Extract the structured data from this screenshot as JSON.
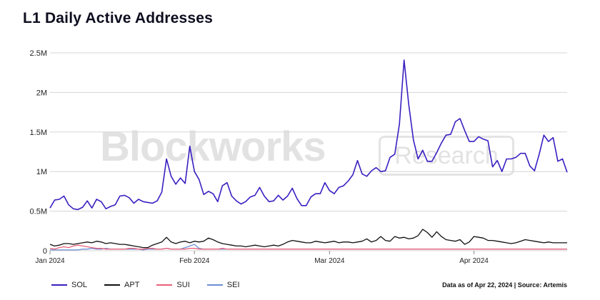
{
  "title": "L1 Daily Active Addresses",
  "watermark": {
    "brand": "Blockworks",
    "badge": "Research"
  },
  "source_note": "Data as of Apr 22, 2024 | Source: Artemis",
  "colors": {
    "SOL": "#3a1fc2",
    "APT": "#111111",
    "SUI": "#e8617a",
    "SEI": "#6a8fd6",
    "grid": "#d6d6d6"
  },
  "chart_data": {
    "type": "line",
    "title": "L1 Daily Active Addresses",
    "xlabel": "",
    "ylabel": "",
    "ylim": [
      0,
      2500000
    ],
    "yticks": [
      {
        "value": 0,
        "label": "0"
      },
      {
        "value": 500000,
        "label": "0.5M"
      },
      {
        "value": 1000000,
        "label": "1M"
      },
      {
        "value": 1500000,
        "label": "1.5M"
      },
      {
        "value": 2000000,
        "label": "2M"
      },
      {
        "value": 2500000,
        "label": "2.5M"
      }
    ],
    "xticks": [
      {
        "day": 0,
        "label": "Jan 2024"
      },
      {
        "day": 31,
        "label": "Feb 2024"
      },
      {
        "day": 60,
        "label": "Mar 2024"
      },
      {
        "day": 91,
        "label": "Apr 2024"
      }
    ],
    "x_start": "2024-01-01",
    "x_end": "2024-04-22",
    "grid": true,
    "legend": "bottom-left",
    "series": [
      {
        "name": "SOL",
        "values": [
          540000,
          640000,
          650000,
          690000,
          580000,
          530000,
          520000,
          550000,
          630000,
          540000,
          650000,
          620000,
          530000,
          560000,
          580000,
          690000,
          700000,
          670000,
          600000,
          650000,
          620000,
          610000,
          600000,
          630000,
          740000,
          1160000,
          940000,
          840000,
          920000,
          850000,
          1320000,
          1000000,
          900000,
          710000,
          750000,
          720000,
          620000,
          820000,
          860000,
          690000,
          630000,
          590000,
          620000,
          680000,
          700000,
          800000,
          690000,
          620000,
          630000,
          700000,
          640000,
          690000,
          790000,
          660000,
          570000,
          570000,
          680000,
          720000,
          720000,
          860000,
          760000,
          720000,
          800000,
          820000,
          880000,
          960000,
          1140000,
          970000,
          940000,
          1010000,
          1050000,
          1000000,
          1010000,
          1180000,
          1220000,
          1600000,
          2410000,
          1850000,
          1400000,
          1160000,
          1270000,
          1130000,
          1130000,
          1240000,
          1360000,
          1460000,
          1470000,
          1630000,
          1670000,
          1520000,
          1380000,
          1380000,
          1440000,
          1410000,
          1390000,
          1060000,
          1140000,
          1000000,
          1160000,
          1160000,
          1180000,
          1230000,
          1230000,
          1070000,
          1010000,
          1220000,
          1460000,
          1380000,
          1430000,
          1130000,
          1160000,
          990000
        ]
      },
      {
        "name": "APT",
        "values": [
          80000,
          60000,
          70000,
          90000,
          90000,
          80000,
          90000,
          100000,
          110000,
          100000,
          120000,
          110000,
          90000,
          100000,
          90000,
          80000,
          80000,
          70000,
          60000,
          50000,
          40000,
          40000,
          70000,
          90000,
          110000,
          170000,
          110000,
          90000,
          110000,
          120000,
          100000,
          120000,
          110000,
          120000,
          160000,
          140000,
          110000,
          90000,
          80000,
          70000,
          60000,
          60000,
          50000,
          60000,
          70000,
          60000,
          50000,
          60000,
          70000,
          60000,
          80000,
          110000,
          130000,
          120000,
          110000,
          100000,
          100000,
          120000,
          110000,
          100000,
          110000,
          120000,
          100000,
          110000,
          110000,
          100000,
          110000,
          120000,
          150000,
          110000,
          130000,
          180000,
          130000,
          120000,
          180000,
          160000,
          170000,
          150000,
          160000,
          190000,
          270000,
          230000,
          170000,
          240000,
          180000,
          140000,
          130000,
          120000,
          140000,
          80000,
          110000,
          180000,
          170000,
          160000,
          130000,
          130000,
          120000,
          110000,
          100000,
          90000,
          100000,
          120000,
          140000,
          130000,
          120000,
          110000,
          100000,
          110000,
          100000,
          100000,
          100000,
          100000
        ]
      },
      {
        "name": "SUI",
        "values": [
          30000,
          20000,
          40000,
          50000,
          40000,
          60000,
          70000,
          60000,
          50000,
          40000,
          30000,
          30000,
          20000,
          20000,
          20000,
          20000,
          20000,
          30000,
          30000,
          20000,
          20000,
          30000,
          30000,
          20000,
          20000,
          30000,
          20000,
          20000,
          20000,
          20000,
          30000,
          30000,
          20000,
          20000,
          20000,
          20000,
          20000,
          30000,
          20000,
          20000,
          20000,
          20000,
          20000,
          20000,
          20000,
          20000,
          20000,
          20000,
          20000,
          20000,
          20000,
          20000,
          20000,
          20000,
          20000,
          20000,
          20000,
          20000,
          20000,
          20000,
          20000,
          20000,
          20000,
          20000,
          20000,
          20000,
          20000,
          20000,
          20000,
          20000,
          20000,
          20000,
          20000,
          20000,
          20000,
          20000,
          20000,
          20000,
          20000,
          20000,
          20000,
          20000,
          20000,
          20000,
          20000,
          20000,
          20000,
          20000,
          20000,
          20000,
          20000,
          20000,
          20000,
          20000,
          20000,
          20000,
          20000,
          20000,
          20000,
          20000,
          20000,
          20000,
          20000,
          20000,
          20000,
          20000,
          20000,
          20000,
          20000,
          20000,
          20000,
          20000
        ]
      },
      {
        "name": "SEI",
        "values": [
          10000,
          10000,
          10000,
          10000,
          10000,
          10000,
          10000,
          20000,
          20000,
          30000,
          20000,
          20000,
          30000,
          20000,
          20000,
          20000,
          20000,
          20000,
          20000,
          20000,
          10000,
          20000,
          20000,
          20000,
          20000,
          30000,
          20000,
          20000,
          20000,
          40000,
          60000,
          80000,
          30000,
          20000,
          20000,
          20000,
          20000,
          20000,
          20000,
          20000,
          20000,
          20000,
          20000,
          20000,
          20000,
          20000,
          20000,
          20000,
          20000,
          20000,
          20000,
          20000,
          20000,
          20000,
          20000,
          20000,
          20000,
          20000,
          20000,
          20000,
          20000,
          20000,
          20000,
          20000,
          20000,
          20000,
          20000,
          20000,
          20000,
          20000,
          20000,
          20000,
          20000,
          20000,
          20000,
          20000,
          20000,
          20000,
          20000,
          20000,
          20000,
          20000,
          20000,
          20000,
          20000,
          20000,
          20000,
          20000,
          20000,
          20000,
          20000,
          20000,
          20000,
          20000,
          20000,
          20000,
          20000,
          20000,
          20000,
          20000,
          20000,
          20000,
          20000,
          20000,
          20000,
          20000,
          20000,
          20000,
          20000,
          20000,
          20000,
          20000
        ]
      }
    ]
  }
}
